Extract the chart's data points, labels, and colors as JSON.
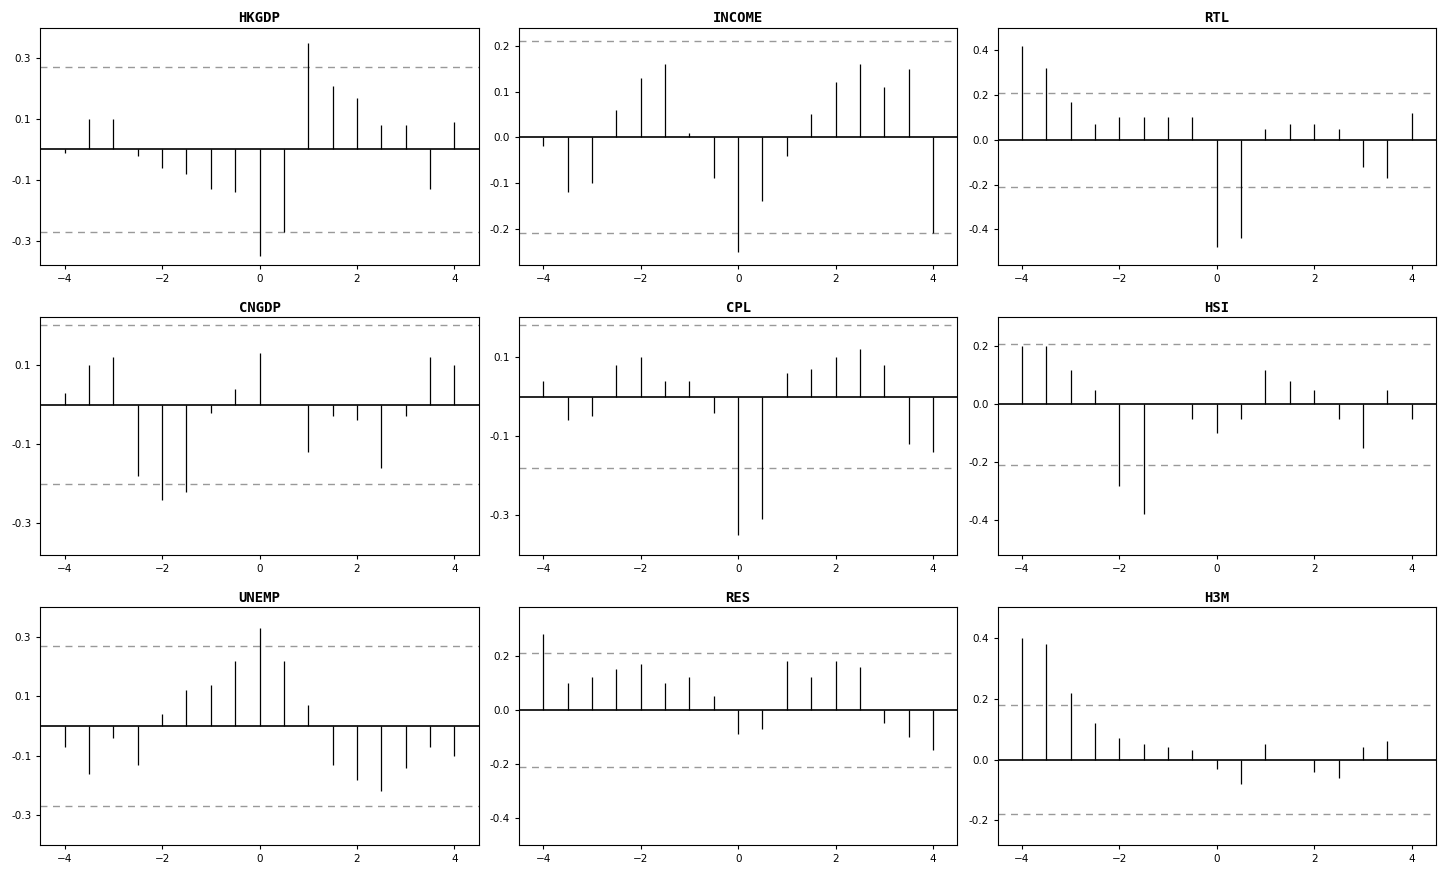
{
  "subplots": [
    {
      "title": "HKGDP",
      "ylim": [
        -0.38,
        0.4
      ],
      "yticks": [
        -0.3,
        -0.1,
        0.1,
        0.3
      ],
      "ci": 0.27,
      "lags": [
        -4.0,
        -3.5,
        -3.0,
        -2.5,
        -2.0,
        -1.5,
        -1.0,
        -0.5,
        0.0,
        0.5,
        1.0,
        1.5,
        2.0,
        2.5,
        3.0,
        3.5,
        4.0
      ],
      "values": [
        -0.01,
        0.1,
        0.1,
        -0.02,
        -0.06,
        -0.08,
        -0.13,
        -0.14,
        -0.35,
        -0.27,
        0.35,
        0.21,
        0.17,
        0.08,
        0.08,
        -0.13,
        0.09
      ]
    },
    {
      "title": "INCOME",
      "ylim": [
        -0.28,
        0.24
      ],
      "yticks": [
        -0.2,
        -0.1,
        0.0,
        0.1,
        0.2
      ],
      "ci": 0.21,
      "lags": [
        -4.0,
        -3.5,
        -3.0,
        -2.5,
        -2.0,
        -1.5,
        -1.0,
        -0.5,
        0.0,
        0.5,
        1.0,
        1.5,
        2.0,
        2.5,
        3.0,
        3.5,
        4.0
      ],
      "values": [
        -0.02,
        -0.12,
        -0.1,
        0.06,
        0.13,
        0.16,
        0.01,
        -0.09,
        -0.25,
        -0.14,
        -0.04,
        0.05,
        0.12,
        0.16,
        0.11,
        0.15,
        -0.21
      ]
    },
    {
      "title": "RTL",
      "ylim": [
        -0.56,
        0.5
      ],
      "yticks": [
        -0.4,
        -0.2,
        0.0,
        0.2,
        0.4
      ],
      "ci": 0.21,
      "lags": [
        -4.0,
        -3.5,
        -3.0,
        -2.5,
        -2.0,
        -1.5,
        -1.0,
        -0.5,
        0.0,
        0.5,
        1.0,
        1.5,
        2.0,
        2.5,
        3.0,
        3.5,
        4.0
      ],
      "values": [
        0.42,
        0.32,
        0.17,
        0.07,
        0.1,
        0.1,
        0.1,
        0.1,
        -0.48,
        -0.44,
        0.05,
        0.07,
        0.07,
        0.05,
        -0.12,
        -0.17,
        0.12
      ]
    },
    {
      "title": "CNGDP",
      "ylim": [
        -0.38,
        0.22
      ],
      "yticks": [
        -0.3,
        -0.1,
        0.1
      ],
      "ci": 0.2,
      "lags": [
        -4.0,
        -3.5,
        -3.0,
        -2.5,
        -2.0,
        -1.5,
        -1.0,
        -0.5,
        0.0,
        0.5,
        1.0,
        1.5,
        2.0,
        2.5,
        3.0,
        3.5,
        4.0
      ],
      "values": [
        0.03,
        0.1,
        0.12,
        -0.18,
        -0.24,
        -0.22,
        -0.02,
        0.04,
        0.13,
        0.0,
        -0.12,
        -0.03,
        -0.04,
        -0.16,
        -0.03,
        0.12,
        0.1
      ]
    },
    {
      "title": "CPL",
      "ylim": [
        -0.4,
        0.2
      ],
      "yticks": [
        -0.3,
        -0.1,
        0.1
      ],
      "ci": 0.18,
      "lags": [
        -4.0,
        -3.5,
        -3.0,
        -2.5,
        -2.0,
        -1.5,
        -1.0,
        -0.5,
        0.0,
        0.5,
        1.0,
        1.5,
        2.0,
        2.5,
        3.0,
        3.5,
        4.0
      ],
      "values": [
        0.04,
        -0.06,
        -0.05,
        0.08,
        0.1,
        0.04,
        0.04,
        -0.04,
        -0.35,
        -0.31,
        0.06,
        0.07,
        0.1,
        0.12,
        0.08,
        -0.12,
        -0.14
      ]
    },
    {
      "title": "HSI",
      "ylim": [
        -0.52,
        0.3
      ],
      "yticks": [
        -0.4,
        -0.2,
        0.0,
        0.2
      ],
      "ci": 0.21,
      "lags": [
        -4.0,
        -3.5,
        -3.0,
        -2.5,
        -2.0,
        -1.5,
        -1.0,
        -0.5,
        0.0,
        0.5,
        1.0,
        1.5,
        2.0,
        2.5,
        3.0,
        3.5,
        4.0
      ],
      "values": [
        0.2,
        0.2,
        0.12,
        0.05,
        -0.28,
        -0.38,
        0.0,
        -0.05,
        -0.1,
        -0.05,
        0.12,
        0.08,
        0.05,
        -0.05,
        -0.15,
        0.05,
        -0.05
      ]
    },
    {
      "title": "UNEMP",
      "ylim": [
        -0.4,
        0.4
      ],
      "yticks": [
        -0.3,
        -0.1,
        0.1,
        0.3
      ],
      "ci": 0.27,
      "lags": [
        -4.0,
        -3.5,
        -3.0,
        -2.5,
        -2.0,
        -1.5,
        -1.0,
        -0.5,
        0.0,
        0.5,
        1.0,
        1.5,
        2.0,
        2.5,
        3.0,
        3.5,
        4.0
      ],
      "values": [
        -0.07,
        -0.16,
        -0.04,
        -0.13,
        0.04,
        0.12,
        0.14,
        0.22,
        0.33,
        0.22,
        0.07,
        -0.13,
        -0.18,
        -0.22,
        -0.14,
        -0.07,
        -0.1
      ]
    },
    {
      "title": "RES",
      "ylim": [
        -0.5,
        0.38
      ],
      "yticks": [
        -0.4,
        -0.2,
        0.0,
        0.2
      ],
      "ci": 0.21,
      "lags": [
        -4.0,
        -3.5,
        -3.0,
        -2.5,
        -2.0,
        -1.5,
        -1.0,
        -0.5,
        0.0,
        0.5,
        1.0,
        1.5,
        2.0,
        2.5,
        3.0,
        3.5,
        4.0
      ],
      "values": [
        0.28,
        0.1,
        0.12,
        0.15,
        0.17,
        0.1,
        0.12,
        0.05,
        -0.09,
        -0.07,
        0.18,
        0.12,
        0.18,
        0.16,
        -0.05,
        -0.1,
        -0.15
      ]
    },
    {
      "title": "H3M",
      "ylim": [
        -0.28,
        0.5
      ],
      "yticks": [
        -0.2,
        0.0,
        0.2,
        0.4
      ],
      "ci": 0.18,
      "lags": [
        -4.0,
        -3.5,
        -3.0,
        -2.5,
        -2.0,
        -1.5,
        -1.0,
        -0.5,
        0.0,
        0.5,
        1.0,
        1.5,
        2.0,
        2.5,
        3.0,
        3.5,
        4.0
      ],
      "values": [
        0.4,
        0.38,
        0.22,
        0.12,
        0.07,
        0.05,
        0.04,
        0.03,
        -0.03,
        -0.08,
        0.05,
        0.0,
        -0.04,
        -0.06,
        0.04,
        0.06,
        0.0
      ]
    }
  ],
  "nrows": 3,
  "ncols": 3,
  "background_color": "#ffffff",
  "bar_color": "#000000",
  "ci_color": "#999999",
  "zero_line_color": "#000000",
  "xlim": [
    -4.5,
    4.5
  ],
  "xticks": [
    -4,
    -2,
    0,
    2,
    4
  ],
  "title_fontsize": 10,
  "tick_fontsize": 7.5,
  "font_family": "monospace"
}
